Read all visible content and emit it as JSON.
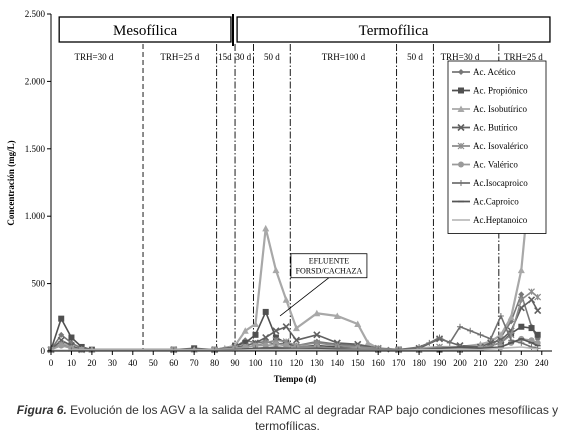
{
  "chart_data": {
    "type": "line",
    "ylabel": "Concentración (mg/L)",
    "xlabel": "Tiempo (d)",
    "xlim": [
      0,
      245
    ],
    "ylim": [
      0,
      2500
    ],
    "x_ticks": [
      0,
      10,
      20,
      30,
      40,
      50,
      60,
      70,
      80,
      90,
      100,
      110,
      120,
      130,
      140,
      150,
      160,
      170,
      180,
      190,
      200,
      210,
      220,
      230,
      240
    ],
    "y_ticks": [
      {
        "value": 0,
        "label": "0"
      },
      {
        "value": 500,
        "label": "500"
      },
      {
        "value": 1000,
        "label": "1.000"
      },
      {
        "value": 1500,
        "label": "1.500"
      },
      {
        "value": 2000,
        "label": "2.000"
      },
      {
        "value": 2500,
        "label": "2.500"
      }
    ],
    "phases": [
      {
        "label": "Mesofílica",
        "x0": 4,
        "x1": 88
      },
      {
        "label": "Termofílica",
        "x0": 91,
        "x1": 244
      }
    ],
    "phase_divider": 89,
    "dividers": [
      {
        "x": 45,
        "style": "dash"
      },
      {
        "x": 81,
        "style": "dashdot"
      },
      {
        "x": 90,
        "style": "dashdot"
      },
      {
        "x": 99,
        "style": "dashdot"
      },
      {
        "x": 117,
        "style": "dashdot"
      },
      {
        "x": 169,
        "style": "dashdot"
      },
      {
        "x": 187,
        "style": "dashdot"
      },
      {
        "x": 219,
        "style": "dashdot"
      }
    ],
    "trh_labels": [
      {
        "text": "TRH=30 d",
        "x": 21
      },
      {
        "text": "TRH=25 d",
        "x": 63
      },
      {
        "text": "15d",
        "x": 85
      },
      {
        "text": "30 d",
        "x": 94
      },
      {
        "text": "50 d",
        "x": 108
      },
      {
        "text": "TRH=100 d",
        "x": 143
      },
      {
        "text": "50 d",
        "x": 178
      },
      {
        "text": "TRH=30 d",
        "x": 200
      },
      {
        "text": "TRH=25 d",
        "x": 231
      }
    ],
    "annotation": {
      "lines": [
        "EFLUENTE",
        "FORSD/CACHAZA"
      ],
      "x": 132,
      "y": 640
    },
    "legend_position": "top-right",
    "series": [
      {
        "name": "Ac. Acético",
        "color": "#777777",
        "marker": "diamond",
        "x": [
          0,
          5,
          10,
          15,
          20,
          60,
          70,
          80,
          90,
          95,
          100,
          105,
          110,
          115,
          120,
          130,
          140,
          150,
          155,
          160,
          165,
          170,
          180,
          190,
          200,
          210,
          215,
          220,
          225,
          230,
          235,
          238
        ],
        "y": [
          10,
          120,
          60,
          20,
          10,
          10,
          15,
          10,
          30,
          80,
          60,
          70,
          50,
          60,
          40,
          70,
          50,
          40,
          30,
          10,
          10,
          10,
          20,
          30,
          10,
          20,
          40,
          100,
          220,
          420,
          180,
          90
        ]
      },
      {
        "name": "Ac. Propiónico",
        "color": "#505050",
        "marker": "square",
        "x": [
          0,
          5,
          10,
          15,
          20,
          60,
          70,
          80,
          90,
          95,
          100,
          105,
          110,
          115,
          120,
          130,
          140,
          150,
          160,
          170,
          180,
          190,
          200,
          210,
          220,
          225,
          230,
          235,
          238
        ],
        "y": [
          10,
          240,
          100,
          30,
          10,
          10,
          20,
          10,
          40,
          60,
          120,
          290,
          100,
          60,
          30,
          40,
          30,
          20,
          10,
          10,
          10,
          10,
          10,
          20,
          60,
          130,
          180,
          170,
          120
        ]
      },
      {
        "name": "Ac. Isobutírico",
        "color": "#a8a8a8",
        "marker": "triangle",
        "x": [
          0,
          5,
          10,
          15,
          20,
          60,
          70,
          80,
          85,
          90,
          95,
          100,
          105,
          110,
          115,
          120,
          130,
          140,
          150,
          155,
          160,
          170,
          180,
          190,
          200,
          210,
          215,
          220,
          225,
          230,
          235,
          238
        ],
        "y": [
          10,
          60,
          30,
          10,
          10,
          10,
          10,
          10,
          20,
          40,
          150,
          200,
          910,
          600,
          380,
          170,
          280,
          260,
          200,
          60,
          20,
          10,
          20,
          30,
          30,
          50,
          70,
          120,
          250,
          600,
          1400,
          2040
        ]
      },
      {
        "name": "Ac. Butírico",
        "color": "#606060",
        "marker": "x",
        "x": [
          0,
          5,
          10,
          15,
          60,
          80,
          90,
          95,
          100,
          105,
          110,
          115,
          120,
          130,
          140,
          150,
          160,
          170,
          180,
          190,
          200,
          210,
          215,
          220,
          225,
          230,
          235,
          238
        ],
        "y": [
          10,
          80,
          40,
          10,
          10,
          10,
          30,
          40,
          60,
          100,
          150,
          180,
          80,
          120,
          60,
          50,
          20,
          10,
          20,
          90,
          40,
          30,
          60,
          80,
          150,
          320,
          380,
          300
        ]
      },
      {
        "name": "Ac. Isovalérico",
        "color": "#8c8c8c",
        "marker": "asterisk",
        "x": [
          0,
          5,
          10,
          15,
          60,
          80,
          90,
          95,
          100,
          105,
          110,
          115,
          120,
          130,
          140,
          150,
          160,
          170,
          180,
          190,
          200,
          210,
          220,
          225,
          230,
          235,
          238
        ],
        "y": [
          10,
          50,
          20,
          10,
          10,
          10,
          20,
          30,
          40,
          60,
          80,
          70,
          40,
          60,
          40,
          30,
          20,
          10,
          10,
          30,
          20,
          20,
          60,
          120,
          380,
          440,
          400
        ]
      },
      {
        "name": "Ac. Valérico",
        "color": "#9a9a9a",
        "marker": "circle",
        "x": [
          0,
          5,
          10,
          15,
          60,
          80,
          90,
          95,
          100,
          105,
          110,
          115,
          120,
          130,
          140,
          150,
          160,
          170,
          180,
          190,
          200,
          210,
          220,
          225,
          230,
          235,
          238
        ],
        "y": [
          10,
          40,
          20,
          10,
          10,
          10,
          20,
          30,
          40,
          40,
          50,
          40,
          30,
          30,
          20,
          20,
          10,
          10,
          10,
          20,
          10,
          20,
          30,
          60,
          90,
          80,
          60
        ]
      },
      {
        "name": "Ac.Isocaproico",
        "color": "#707070",
        "marker": "plus",
        "x": [
          0,
          10,
          60,
          80,
          90,
          100,
          110,
          120,
          130,
          140,
          150,
          160,
          170,
          180,
          185,
          190,
          195,
          200,
          205,
          210,
          215,
          220,
          225,
          230,
          235,
          238
        ],
        "y": [
          5,
          5,
          5,
          5,
          10,
          20,
          30,
          20,
          20,
          20,
          10,
          10,
          10,
          30,
          60,
          100,
          60,
          180,
          150,
          120,
          90,
          260,
          80,
          60,
          30,
          20
        ]
      },
      {
        "name": "Ac.Caproico",
        "color": "#555555",
        "marker": "dash",
        "x": [
          0,
          10,
          60,
          80,
          90,
          100,
          110,
          120,
          130,
          140,
          150,
          160,
          170,
          180,
          190,
          200,
          210,
          220,
          225,
          230,
          235,
          238
        ],
        "y": [
          5,
          5,
          5,
          5,
          10,
          20,
          20,
          10,
          20,
          10,
          10,
          10,
          10,
          10,
          20,
          30,
          20,
          30,
          60,
          90,
          60,
          40
        ]
      },
      {
        "name": "Ac.Heptanoico",
        "color": "#bbbbbb",
        "marker": "none",
        "x": [
          0,
          10,
          60,
          80,
          90,
          100,
          110,
          120,
          130,
          140,
          150,
          160,
          170,
          180,
          190,
          200,
          210,
          220,
          230,
          235,
          238
        ],
        "y": [
          5,
          5,
          5,
          5,
          5,
          10,
          10,
          10,
          10,
          5,
          5,
          5,
          5,
          10,
          10,
          10,
          10,
          20,
          30,
          20,
          15
        ]
      }
    ]
  },
  "caption": {
    "label": "Figura 6.",
    "text": " Evolución de los AGV a la salida del RAMC al degradar RAP bajo condiciones mesofílicas y termofílicas."
  }
}
